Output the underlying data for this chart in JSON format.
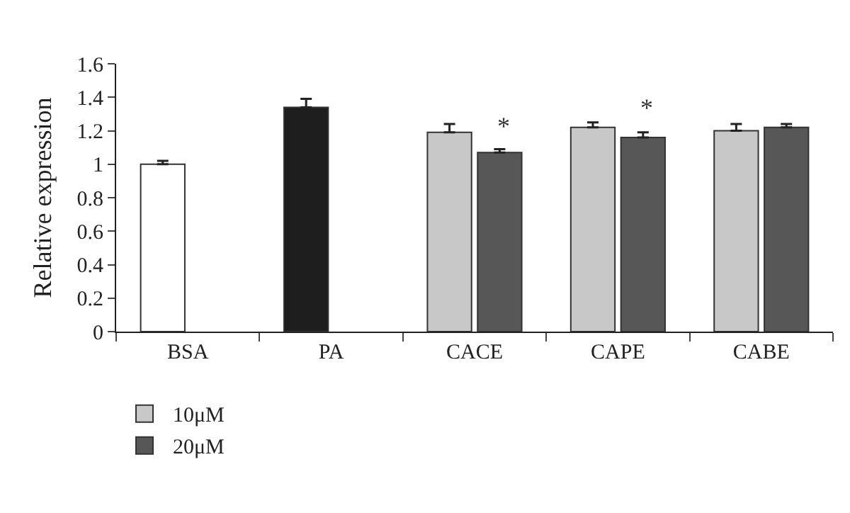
{
  "chart_data": {
    "type": "bar",
    "ylabel": "Relative expression",
    "categories": [
      "BSA",
      "PA",
      "CACE",
      "CAPE",
      "CABE"
    ],
    "series": [
      {
        "colors": [
          "#ffffff",
          "#1e1e1e",
          null,
          null,
          null
        ],
        "values": [
          1.0,
          1.34,
          null,
          null,
          null
        ],
        "errors": [
          [
            1.0,
            1.02
          ],
          [
            1.34,
            1.39
          ],
          null,
          null,
          null
        ]
      },
      {
        "name": "10μM",
        "color": "#c8c8c8",
        "values": [
          null,
          null,
          1.19,
          1.22,
          1.2
        ],
        "errors": [
          null,
          null,
          [
            1.19,
            1.24
          ],
          [
            1.22,
            1.25
          ],
          [
            1.2,
            1.24
          ]
        ]
      },
      {
        "name": "20μM",
        "color": "#575757",
        "values": [
          null,
          null,
          1.07,
          1.16,
          1.22
        ],
        "errors": [
          null,
          null,
          [
            1.07,
            1.09
          ],
          [
            1.16,
            1.19
          ],
          [
            1.22,
            1.24
          ]
        ]
      }
    ],
    "annotations": [
      {
        "text": "*",
        "x": "CACE",
        "y": 1.13
      },
      {
        "text": "*",
        "x": "CAPE",
        "y": 1.24
      }
    ],
    "ylim": [
      0,
      1.6
    ],
    "yticks": [
      0,
      0.2,
      0.4,
      0.6,
      0.8,
      1,
      1.2,
      1.4,
      1.6
    ],
    "grid": false,
    "legend": "bottom left"
  }
}
